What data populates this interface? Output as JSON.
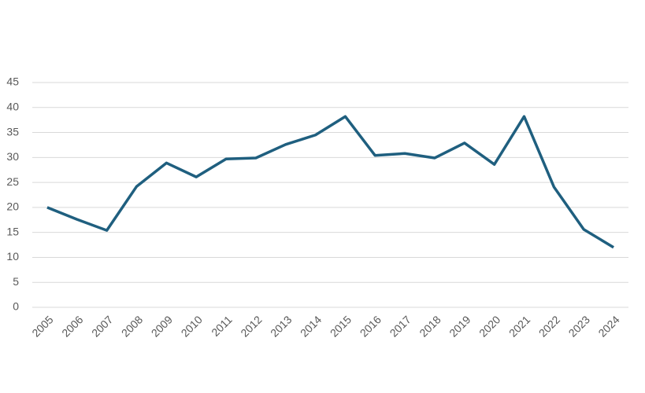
{
  "chart_data": {
    "type": "line",
    "categories": [
      "2005",
      "2006",
      "2007",
      "2008",
      "2009",
      "2010",
      "2011",
      "2012",
      "2013",
      "2014",
      "2015",
      "2016",
      "2017",
      "2018",
      "2019",
      "2020",
      "2021",
      "2022",
      "2023",
      "2024"
    ],
    "values": [
      20.0,
      17.6,
      15.4,
      24.2,
      28.9,
      26.1,
      29.7,
      29.9,
      32.6,
      34.5,
      38.2,
      30.4,
      30.8,
      29.9,
      32.9,
      28.6,
      38.2,
      24.1,
      15.6,
      12.0
    ],
    "color": "#1f5f7f",
    "ylim": [
      0,
      45
    ],
    "yticks": [
      0,
      5,
      10,
      15,
      20,
      25,
      30,
      35,
      40,
      45
    ],
    "grid": true
  }
}
